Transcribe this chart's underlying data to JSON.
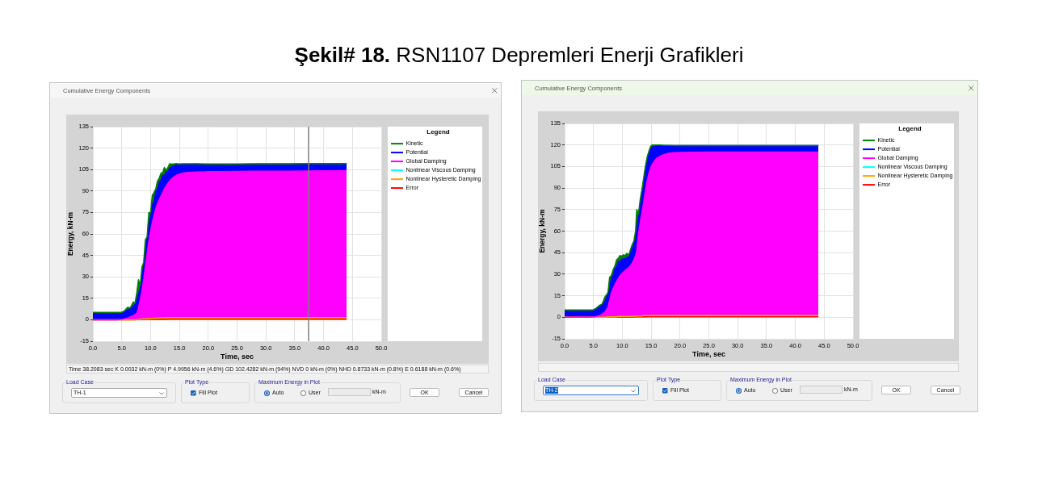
{
  "chart_data": [
    {
      "type": "other",
      "title": "Şekil# 18.",
      "subtitle": "RSN1107 Depremleri Enerji Grafikleri"
    },
    {
      "type": "area",
      "title": "Cumulative Energy Components",
      "xlabel": "Time, sec",
      "ylabel": "Energy, kN-m",
      "legend_title": "Legend",
      "legend": "right",
      "stacked": true,
      "grid": true,
      "xlim": [
        0,
        50
      ],
      "xticks": [
        {
          "value": 0,
          "label": "0.0"
        },
        {
          "value": 5,
          "label": "5.0"
        },
        {
          "value": 10,
          "label": "10.0"
        },
        {
          "value": 15,
          "label": "15.0"
        },
        {
          "value": 20,
          "label": "20.0"
        },
        {
          "value": 25,
          "label": "25.0"
        },
        {
          "value": 30,
          "label": "30.0"
        },
        {
          "value": 35,
          "label": "35.0"
        },
        {
          "value": 40,
          "label": "40.0"
        },
        {
          "value": 45,
          "label": "45.0"
        },
        {
          "value": 50,
          "label": "50.0"
        }
      ],
      "ylim": [
        -15,
        135
      ],
      "yticks": [
        -15,
        0,
        15,
        30,
        45,
        60,
        75,
        90,
        105,
        120,
        135
      ],
      "x": [
        0,
        2,
        4,
        5,
        5.5,
        6,
        6.5,
        7,
        7.3,
        7.6,
        7.9,
        8.2,
        8.5,
        8.8,
        9.1,
        9.4,
        9.7,
        10,
        10.3,
        10.6,
        10.9,
        11.2,
        11.5,
        11.8,
        12.1,
        12.4,
        12.7,
        13,
        13.3,
        13.6,
        13.9,
        14.2,
        14.5,
        14.8,
        15.5,
        16.5,
        18,
        20,
        22,
        25,
        28,
        31,
        34,
        37,
        40,
        42,
        44
      ],
      "series": [
        {
          "name": "Error",
          "color": "#ff0000",
          "values": [
            0,
            0,
            0,
            0,
            0,
            0,
            0,
            0,
            0,
            0.1,
            0.1,
            0.1,
            0.1,
            0.2,
            0.2,
            0.2,
            0.3,
            0.3,
            0.3,
            0.4,
            0.4,
            0.4,
            0.5,
            0.5,
            0.5,
            0.5,
            0.5,
            0.6,
            0.6,
            0.6,
            0.6,
            0.6,
            0.6,
            0.6,
            0.6,
            0.6,
            0.6,
            0.6,
            0.6,
            0.6,
            0.6,
            0.6,
            0.6,
            0.6,
            0.6,
            0.6,
            0.6
          ]
        },
        {
          "name": "Nonlinear Hysteretic Damping",
          "color": "#ffa500",
          "values": [
            0,
            0,
            0,
            0,
            0,
            0,
            0,
            0,
            0,
            0.1,
            0.2,
            0.3,
            0.4,
            0.4,
            0.5,
            0.5,
            0.6,
            0.6,
            0.7,
            0.7,
            0.7,
            0.8,
            0.8,
            0.8,
            0.8,
            0.9,
            0.9,
            0.9,
            0.9,
            0.9,
            0.9,
            0.9,
            0.9,
            0.9,
            0.9,
            0.9,
            0.9,
            0.9,
            0.9,
            0.9,
            0.9,
            0.9,
            0.9,
            0.9,
            0.9,
            0.9,
            0.9
          ]
        },
        {
          "name": "Nonlinear Viscous Damping",
          "color": "#00ffff",
          "values": [
            null,
            null,
            null,
            null,
            null,
            null,
            null,
            null,
            null,
            null,
            null,
            null,
            null,
            null,
            null,
            null,
            null,
            null,
            null,
            null,
            null,
            null,
            null,
            null,
            null,
            null,
            null,
            null,
            null,
            null,
            null,
            null,
            null,
            null,
            null,
            null,
            null,
            null,
            null,
            null,
            null,
            null,
            null,
            null,
            null,
            null,
            null
          ]
        },
        {
          "name": "Global Damping",
          "color": "#ff00ff",
          "values": [
            0,
            0,
            0,
            0.2,
            0.6,
            1.2,
            2,
            3,
            3.6,
            4.3,
            7.7,
            13.6,
            19.5,
            27.4,
            36.3,
            45.3,
            54.1,
            61.1,
            67,
            71.9,
            76.4,
            79.8,
            82.7,
            85.2,
            87.7,
            90.1,
            92.1,
            94,
            95.5,
            96.8,
            97.9,
            98.8,
            99.5,
            100.1,
            100.9,
            101.5,
            101.8,
            102,
            102.1,
            102.2,
            102.3,
            102.4,
            102.4,
            102.5,
            102.6,
            102.6,
            102.7
          ]
        },
        {
          "name": "Potential",
          "color": "#0000ff",
          "values": [
            5,
            5,
            5,
            5,
            5.2,
            5.5,
            5.8,
            6.5,
            7,
            9,
            10,
            8,
            11,
            9,
            12,
            10,
            12,
            10,
            13,
            9,
            12,
            10,
            12,
            11,
            12,
            9,
            10,
            8,
            9,
            8.5,
            8,
            7.5,
            7.2,
            6.8,
            6.2,
            5.7,
            5.5,
            5.3,
            5.2,
            5.1,
            5.1,
            5,
            5,
            5,
            5,
            4.9,
            4.8
          ]
        },
        {
          "name": "Kinetic",
          "color": "#008000",
          "values": [
            0,
            0,
            0,
            0,
            0.5,
            2,
            0.5,
            3,
            1,
            5,
            10,
            2,
            6,
            3,
            7,
            2,
            8,
            3,
            6,
            7,
            2,
            6,
            3,
            5,
            2,
            6,
            1,
            3,
            3,
            2,
            1.5,
            1.2,
            1,
            0.5,
            0.5,
            0.3,
            0.2,
            0,
            0,
            0,
            0,
            0,
            0,
            0,
            0,
            0,
            0
          ]
        }
      ],
      "ref_lines": [
        {
          "axis": "x",
          "value": 37.4,
          "color": "#808080"
        }
      ],
      "annotations": [
        "Time 38.2083 sec K 0.0032 kN-m (0%) P 4.9956 kN-m (4.6%) GD 102.4282 kN-m (94%) NVD 0 kN-m (0%) NHD 0.8733 kN-m (0.8%) E 0.6188 kN-m (0.6%)",
        "Load Case",
        "TH-1",
        "Plot Type",
        "Fill Plot",
        "Maximum Energy in Plot",
        "Auto",
        "User",
        "kN-m",
        "OK",
        "Cancel"
      ]
    },
    {
      "type": "area",
      "title": "Cumulative Energy Components",
      "xlabel": "Time, sec",
      "ylabel": "Energy, kN-m",
      "legend_title": "Legend",
      "legend": "right",
      "stacked": true,
      "grid": true,
      "xlim": [
        0,
        50
      ],
      "xticks": [
        {
          "value": 0,
          "label": "0.0"
        },
        {
          "value": 5,
          "label": "5.0"
        },
        {
          "value": 10,
          "label": "10.0"
        },
        {
          "value": 15,
          "label": "15.0"
        },
        {
          "value": 20,
          "label": "20.0"
        },
        {
          "value": 25,
          "label": "25.0"
        },
        {
          "value": 30,
          "label": "30.0"
        },
        {
          "value": 35,
          "label": "35.0"
        },
        {
          "value": 40,
          "label": "40.0"
        },
        {
          "value": 45,
          "label": "45.0"
        },
        {
          "value": 50,
          "label": "50.0"
        }
      ],
      "ylim": [
        -15,
        135
      ],
      "yticks": [
        -15,
        0,
        15,
        30,
        45,
        60,
        75,
        90,
        105,
        120,
        135
      ],
      "x": [
        0,
        2,
        4,
        5,
        5.5,
        6,
        6.5,
        7,
        7.5,
        7.8,
        8.1,
        8.4,
        8.7,
        9,
        9.3,
        9.6,
        9.9,
        10.2,
        10.5,
        10.8,
        11.1,
        11.4,
        11.7,
        12,
        12.3,
        12.5,
        12.8,
        13.1,
        13.4,
        13.7,
        14,
        14.3,
        14.6,
        14.9,
        15.2,
        15.6,
        16,
        16.5,
        17,
        18,
        19,
        20,
        22,
        25,
        28,
        31,
        34,
        37,
        40,
        42,
        44
      ],
      "series": [
        {
          "name": "Error",
          "color": "#ff0000",
          "values": [
            0,
            0,
            0,
            0,
            0,
            0,
            0,
            0,
            0.1,
            0.1,
            0.1,
            0.1,
            0.1,
            0.1,
            0.2,
            0.2,
            0.2,
            0.2,
            0.2,
            0.2,
            0.2,
            0.2,
            0.2,
            0.2,
            0.3,
            0.3,
            0.3,
            0.3,
            0.3,
            0.3,
            0.3,
            0.4,
            0.4,
            0.4,
            0.4,
            0.4,
            0.4,
            0.4,
            0.4,
            0.4,
            0.4,
            0.4,
            0.4,
            0.4,
            0.4,
            0.4,
            0.4,
            0.4,
            0.4,
            0.4,
            0.4
          ]
        },
        {
          "name": "Nonlinear Hysteretic Damping",
          "color": "#ffa500",
          "values": [
            0,
            0,
            0,
            0,
            0,
            0,
            0,
            0,
            0.2,
            0.2,
            0.2,
            0.2,
            0.2,
            0.2,
            0.4,
            0.4,
            0.4,
            0.4,
            0.4,
            0.4,
            0.4,
            0.4,
            0.4,
            0.4,
            0.6,
            0.6,
            0.6,
            0.6,
            0.6,
            0.8,
            0.8,
            0.8,
            0.8,
            0.9,
            0.9,
            0.9,
            0.9,
            0.9,
            0.9,
            0.9,
            0.9,
            0.9,
            0.9,
            0.9,
            0.9,
            0.9,
            0.9,
            0.9,
            0.9,
            0.9,
            0.9
          ]
        },
        {
          "name": "Nonlinear Viscous Damping",
          "color": "#00ffff",
          "values": [
            null,
            null,
            null,
            null,
            null,
            null,
            null,
            null,
            null,
            null,
            null,
            null,
            null,
            null,
            null,
            null,
            null,
            null,
            null,
            null,
            null,
            null,
            null,
            null,
            null,
            null,
            null,
            null,
            null,
            null,
            null,
            null,
            null,
            null,
            null,
            null,
            null,
            null,
            null,
            null,
            null,
            null,
            null,
            null,
            null,
            null,
            null,
            null,
            null,
            null,
            null
          ]
        },
        {
          "name": "Global Damping",
          "color": "#ff00ff",
          "values": [
            0,
            0,
            0,
            0.1,
            0.6,
            1.2,
            2.2,
            3.8,
            6.7,
            11.7,
            16.7,
            19.7,
            22.2,
            24.7,
            26.4,
            28.4,
            29.9,
            30.9,
            31.9,
            32.9,
            33.9,
            35.4,
            36.9,
            39.4,
            42.1,
            45.1,
            57.1,
            65.1,
            72.1,
            78.9,
            86.9,
            93.8,
            98.8,
            102.7,
            105.2,
            107.7,
            109.5,
            110.7,
            111.7,
            112.9,
            113.3,
            113.5,
            113.6,
            113.7,
            113.7,
            113.7,
            113.7,
            113.8,
            113.8,
            113.8,
            113.8
          ]
        },
        {
          "name": "Potential",
          "color": "#0000ff",
          "values": [
            5,
            5,
            5,
            5,
            5.5,
            6,
            6.5,
            7.5,
            9,
            8,
            10,
            9,
            11,
            10,
            12,
            9,
            10,
            9,
            8.5,
            8,
            7.5,
            9,
            10,
            11,
            14,
            16,
            12,
            13,
            14,
            15,
            15,
            15,
            14,
            13,
            12,
            10,
            8.5,
            7.5,
            6.5,
            5.3,
            5,
            4.7,
            4.6,
            4.6,
            4.6,
            4.5,
            4.5,
            4.5,
            4.5,
            4.5,
            4.5
          ]
        },
        {
          "name": "Kinetic",
          "color": "#008000",
          "values": [
            0,
            0,
            0,
            0,
            0.3,
            1,
            0.5,
            3,
            1,
            8,
            2,
            4,
            2,
            5,
            2,
            5,
            2,
            3,
            2,
            3,
            1,
            2,
            3,
            2,
            3,
            13,
            2,
            3,
            2,
            2,
            2,
            1.5,
            1.5,
            2,
            1.5,
            1,
            0.7,
            0.5,
            0.3,
            0.2,
            0,
            0,
            0,
            0,
            0,
            0,
            0,
            0,
            0,
            0,
            0
          ]
        }
      ],
      "annotations": [
        "Load Case",
        "TH-2",
        "Plot Type",
        "Fill Plot",
        "Maximum Energy in Plot",
        "Auto",
        "User",
        "kN-m",
        "OK",
        "Cancel"
      ]
    }
  ]
}
